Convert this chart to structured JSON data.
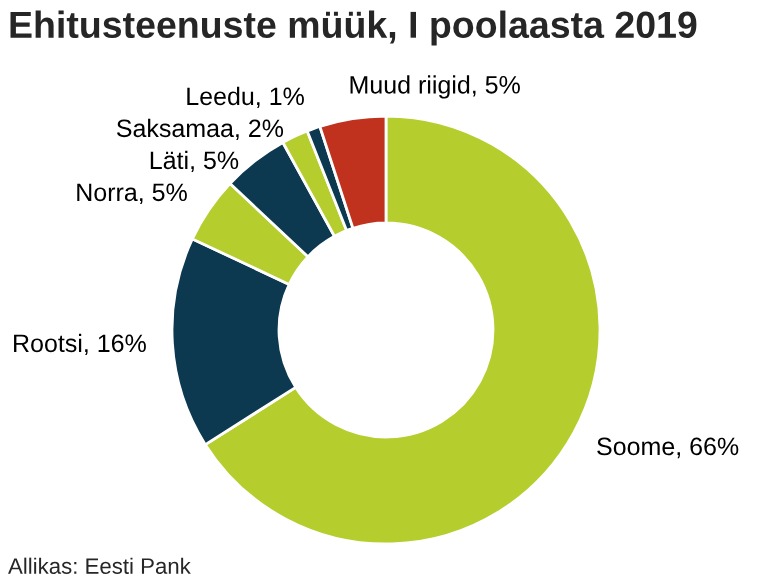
{
  "chart_data": {
    "type": "donut",
    "title": "Ehitusteenuste müük, I poolaasta 2019",
    "categories": [
      "Soome",
      "Rootsi",
      "Norra",
      "Läti",
      "Saksamaa",
      "Leedu",
      "Muud riigid"
    ],
    "values": [
      66,
      16,
      5,
      5,
      2,
      1,
      5
    ],
    "value_labels": [
      "66%",
      "16%",
      "5%",
      "5%",
      "2%",
      "1%",
      "5%"
    ],
    "colors": [
      "#b5cd2d",
      "#0c3950",
      "#b5cd2d",
      "#0c3950",
      "#b5cd2d",
      "#0c3950",
      "#c0321e"
    ],
    "annotations": [
      "Allikas: Eesti Pank"
    ]
  }
}
